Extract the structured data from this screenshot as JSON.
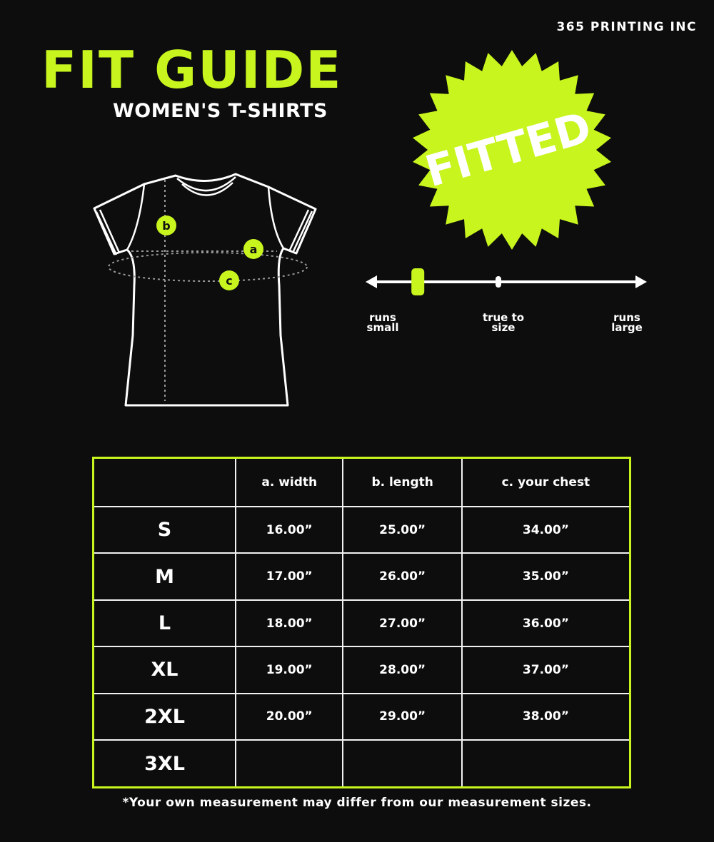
{
  "brand": "365 PRINTING INC",
  "title": "FIT GUIDE",
  "subtitle": "WOMEN'S T-SHIRTS",
  "badge": "FITTED",
  "accent_color": "#c8f51e",
  "diagram": {
    "markers": [
      "a",
      "b",
      "c"
    ]
  },
  "fit_scale": {
    "labels": {
      "small": "runs small",
      "true": "true to size",
      "large": "runs large"
    },
    "position": 0.18
  },
  "table": {
    "headers": [
      "",
      "a. width",
      "b. length",
      "c. your chest"
    ],
    "rows": [
      {
        "size": "S",
        "width": "16.00”",
        "length": "25.00”",
        "chest": "34.00”"
      },
      {
        "size": "M",
        "width": "17.00”",
        "length": "26.00”",
        "chest": "35.00”"
      },
      {
        "size": "L",
        "width": "18.00”",
        "length": "27.00”",
        "chest": "36.00”"
      },
      {
        "size": "XL",
        "width": "19.00”",
        "length": "28.00”",
        "chest": "37.00”"
      },
      {
        "size": "2XL",
        "width": "20.00”",
        "length": "29.00”",
        "chest": "38.00”"
      },
      {
        "size": "3XL",
        "width": "",
        "length": "",
        "chest": ""
      }
    ]
  },
  "note": "*Your own measurement may differ from our measurement sizes."
}
